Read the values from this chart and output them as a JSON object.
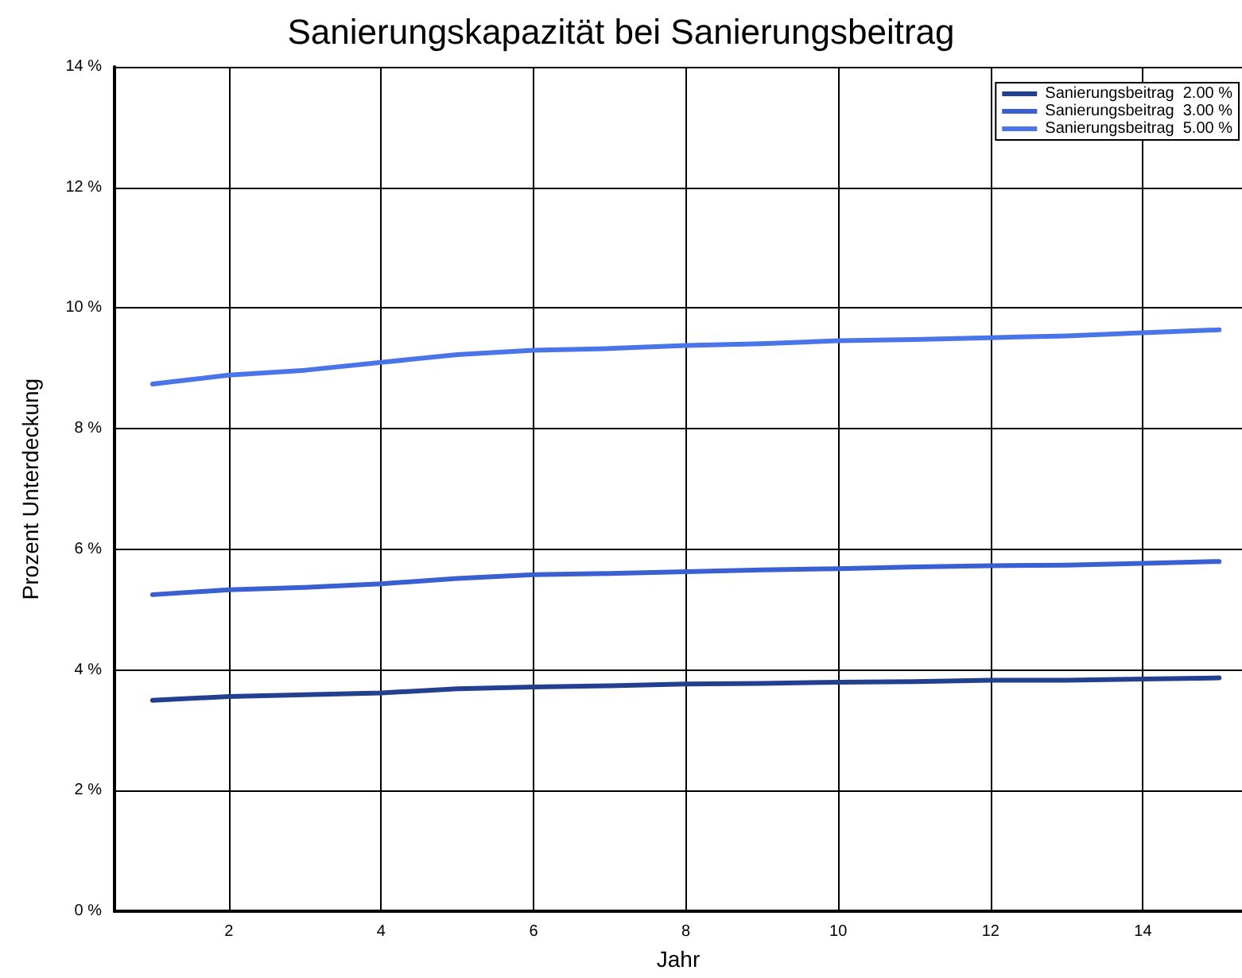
{
  "chart_data": {
    "type": "line",
    "title": "Sanierungskapazität bei Sanierungsbeitrag",
    "xlabel": "Jahr",
    "ylabel": "Prozent Unterdeckung",
    "x": [
      1,
      2,
      3,
      4,
      5,
      6,
      7,
      8,
      9,
      10,
      11,
      12,
      13,
      14,
      15
    ],
    "series": [
      {
        "name": "Sanierungsbeitrag  2.00 %",
        "color": "#233f8f",
        "values": [
          3.5,
          3.56,
          3.59,
          3.62,
          3.69,
          3.72,
          3.74,
          3.77,
          3.78,
          3.8,
          3.81,
          3.83,
          3.83,
          3.85,
          3.87
        ]
      },
      {
        "name": "Sanierungsbeitrag  3.00 %",
        "color": "#3a5fd0",
        "values": [
          5.25,
          5.33,
          5.37,
          5.43,
          5.52,
          5.58,
          5.6,
          5.63,
          5.66,
          5.68,
          5.71,
          5.73,
          5.74,
          5.77,
          5.8
        ]
      },
      {
        "name": "Sanierungsbeitrag  5.00 %",
        "color": "#4a75e8",
        "values": [
          8.74,
          8.89,
          8.97,
          9.1,
          9.23,
          9.3,
          9.33,
          9.38,
          9.41,
          9.46,
          9.48,
          9.51,
          9.54,
          9.59,
          9.64
        ]
      }
    ],
    "xlim": [
      0.5,
      15.3
    ],
    "xticks": [
      2,
      4,
      6,
      8,
      10,
      12,
      14
    ],
    "ylim": [
      0,
      14
    ],
    "yticks": [
      {
        "value": 0,
        "label": "0 %"
      },
      {
        "value": 2,
        "label": "2 %"
      },
      {
        "value": 4,
        "label": "4 %"
      },
      {
        "value": 6,
        "label": "6 %"
      },
      {
        "value": 8,
        "label": "8 %"
      },
      {
        "value": 10,
        "label": "10 %"
      },
      {
        "value": 12,
        "label": "12 %"
      },
      {
        "value": 14,
        "label": "14 %"
      }
    ],
    "grid": true,
    "legend": "top right",
    "marker": "none",
    "line_style": "solid"
  }
}
